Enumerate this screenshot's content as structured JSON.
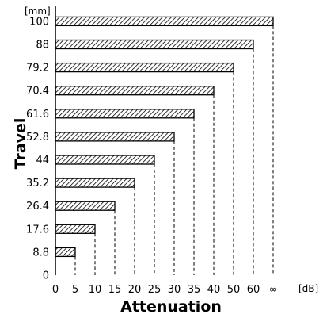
{
  "chart_data": {
    "type": "bar",
    "orientation": "horizontal",
    "ylabel": "Travel",
    "yunit": "[mm]",
    "xlabel": "Attenuation",
    "xunit": "[dB]",
    "y_ticks": [
      "0",
      "8.8",
      "17.6",
      "26.4",
      "35.2",
      "44",
      "52.8",
      "61.6",
      "70.4",
      "79.2",
      "88",
      "100"
    ],
    "x_ticks": [
      "0",
      "5",
      "10",
      "15",
      "20",
      "25",
      "30",
      "35",
      "40",
      "50",
      "60",
      "∞"
    ],
    "bars": [
      {
        "travel": "8.8",
        "attenuation": "5"
      },
      {
        "travel": "17.6",
        "attenuation": "10"
      },
      {
        "travel": "26.4",
        "attenuation": "15"
      },
      {
        "travel": "35.2",
        "attenuation": "20"
      },
      {
        "travel": "44",
        "attenuation": "25"
      },
      {
        "travel": "52.8",
        "attenuation": "30"
      },
      {
        "travel": "61.6",
        "attenuation": "35"
      },
      {
        "travel": "70.4",
        "attenuation": "40"
      },
      {
        "travel": "79.2",
        "attenuation": "50"
      },
      {
        "travel": "88",
        "attenuation": "60"
      },
      {
        "travel": "100",
        "attenuation": "∞"
      }
    ],
    "bar_fill": "hatched",
    "guide_lines": "dashed",
    "grid": false,
    "legend": "none"
  }
}
